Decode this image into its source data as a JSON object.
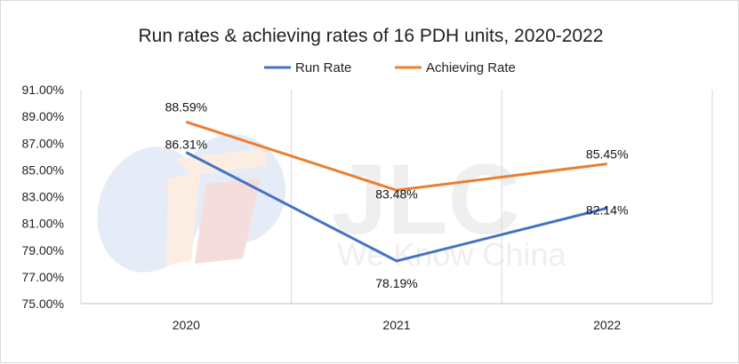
{
  "chart_data": {
    "type": "line",
    "title": "Run rates & achieving rates of 16 PDH units, 2020-2022",
    "categories": [
      "2020",
      "2021",
      "2022"
    ],
    "series": [
      {
        "name": "Run Rate",
        "values": [
          86.31,
          78.19,
          82.14
        ],
        "labels": [
          "86.31%",
          "78.19%",
          "82.14%"
        ],
        "color": "#4472c4"
      },
      {
        "name": "Achieving Rate",
        "values": [
          88.59,
          83.48,
          85.45
        ],
        "labels": [
          "88.59%",
          "83.48%",
          "85.45%"
        ],
        "color": "#ed7d31"
      }
    ],
    "ylim": [
      75,
      91
    ],
    "yticks": [
      75,
      77,
      79,
      81,
      83,
      85,
      87,
      89,
      91
    ],
    "ytick_labels": [
      "75.00%",
      "77.00%",
      "79.00%",
      "81.00%",
      "83.00%",
      "85.00%",
      "87.00%",
      "89.00%",
      "91.00%"
    ],
    "legend_position": "top-center",
    "grid": "vertical",
    "watermark": {
      "logo": "JLC",
      "tagline": "We Know China"
    }
  }
}
